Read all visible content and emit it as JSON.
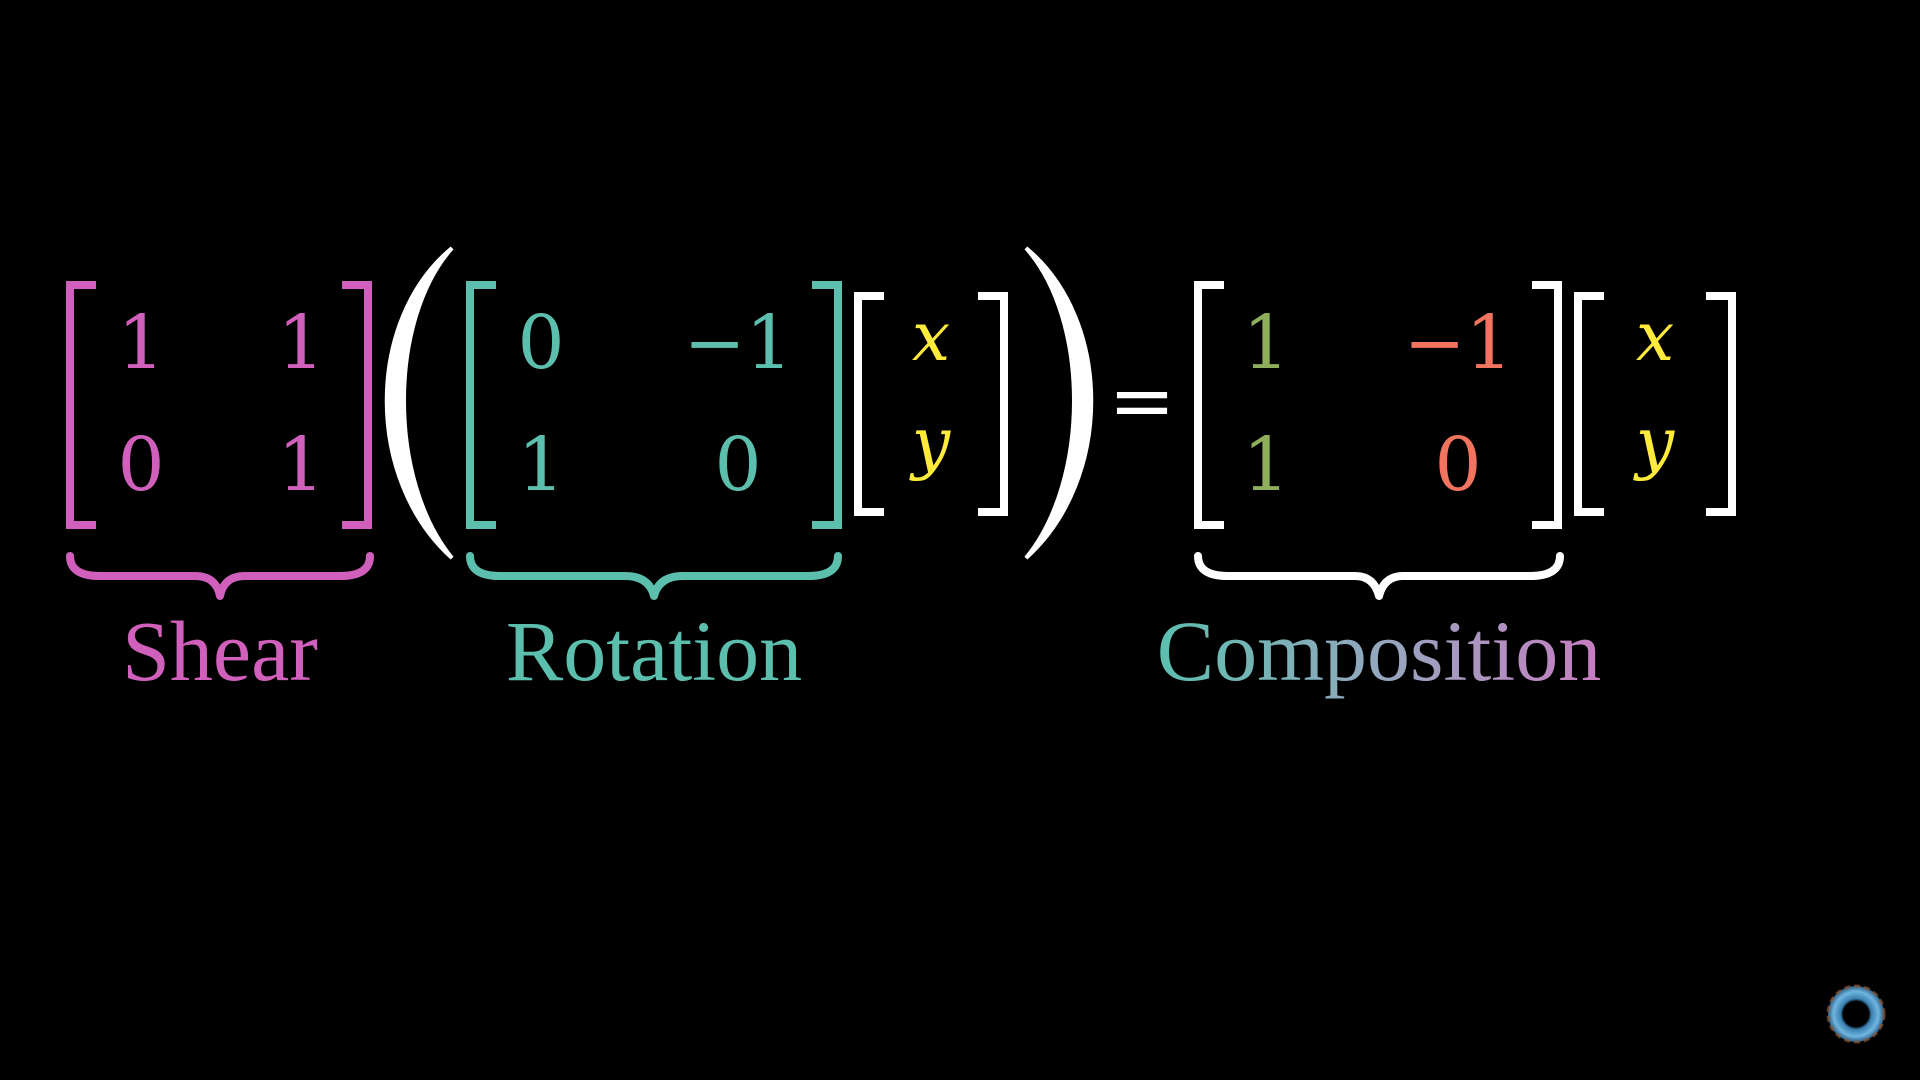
{
  "colors": {
    "background": "#000000",
    "shear": "#d160bd",
    "rotation": "#5cbfae",
    "vector": "#ffffff",
    "variable": "#ffeb3b",
    "result_i_hat": "#8fae5b",
    "result_j_hat": "#f2735e",
    "composition_gradient": [
      "#5cbfae",
      "#9aa4bf",
      "#c77dc0"
    ]
  },
  "equation": {
    "shear": {
      "entries": [
        [
          "1",
          "1"
        ],
        [
          "0",
          "1"
        ]
      ]
    },
    "rotation": {
      "entries": [
        [
          "0",
          "−1"
        ],
        [
          "1",
          "0"
        ]
      ]
    },
    "vector": {
      "entries": [
        "x",
        "y"
      ]
    },
    "equals": "=",
    "composition": {
      "entries": [
        [
          "1",
          "−1"
        ],
        [
          "1",
          "0"
        ]
      ]
    },
    "vector_right": {
      "entries": [
        "x",
        "y"
      ]
    }
  },
  "labels": {
    "shear": "Shear",
    "rotation": "Rotation",
    "composition": "Composition"
  },
  "logo": {
    "icon": "pi-creature-eye-icon"
  }
}
